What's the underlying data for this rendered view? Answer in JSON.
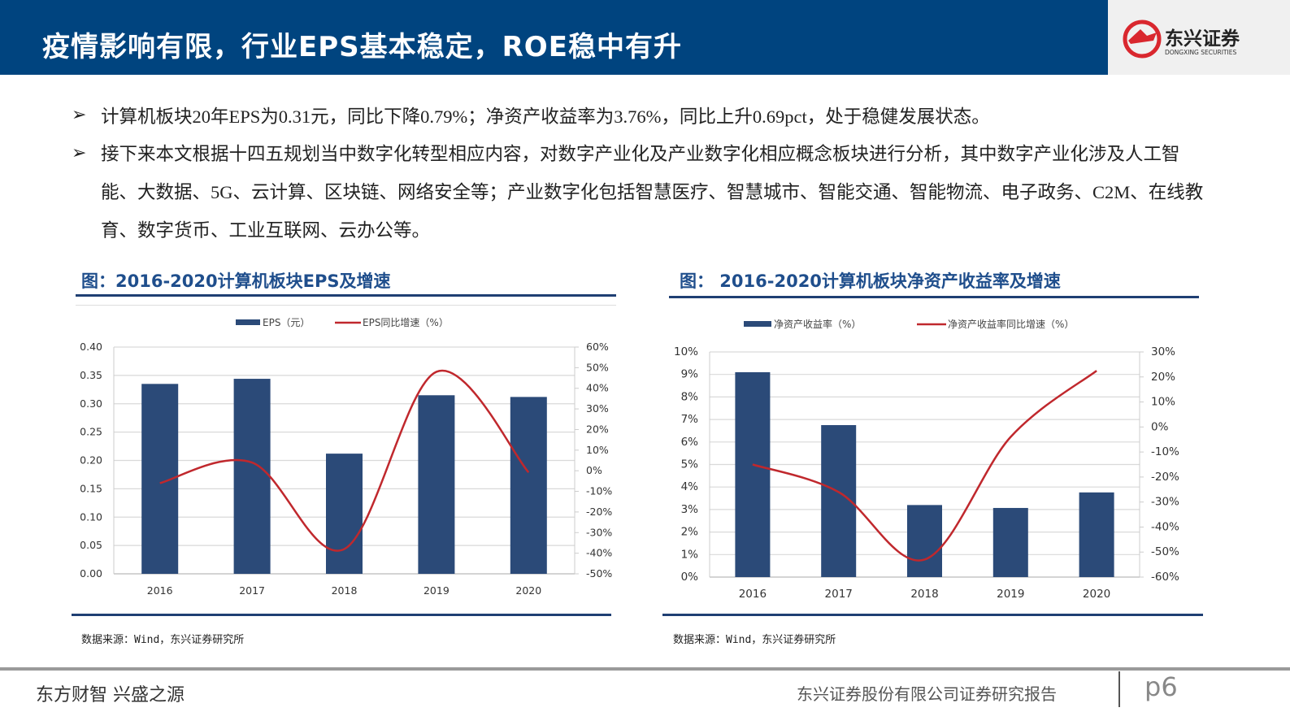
{
  "header": {
    "title": "疫情影响有限，行业EPS基本稳定，ROE稳中有升",
    "logo_text": "东兴证券",
    "logo_sub": "DONGXING SECURITIES"
  },
  "bullets": [
    {
      "icon": "arrow-bullet-icon",
      "text": "计算机板块20年EPS为0.31元，同比下降0.79%；净资产收益率为3.76%，同比上升0.69pct，处于稳健发展状态。"
    },
    {
      "icon": "arrow-bullet-icon",
      "text": "接下来本文根据十四五规划当中数字化转型相应内容，对数字产业化及产业数字化相应概念板块进行分析，其中数字产业化涉及人工智能、大数据、5G、云计算、区块链、网络安全等；产业数字化包括智慧医疗、智慧城市、智能交通、智能物流、电子政务、C2M、在线教育、数字货币、工业互联网、云办公等。"
    }
  ],
  "charts": [
    {
      "heading": "图：2016-2020计算机板块EPS及增速",
      "source": "数据来源：Wind，东兴证券研究所"
    },
    {
      "heading": "图：  2016-2020计算机板块净资产收益率及增速",
      "source": "数据来源：Wind，东兴证券研究所"
    }
  ],
  "chart_data": [
    {
      "type": "bar+line",
      "categories": [
        "2016",
        "2017",
        "2018",
        "2019",
        "2020"
      ],
      "series": [
        {
          "name": "EPS（元）",
          "type": "bar",
          "axis": "left",
          "color": "#2b4a78",
          "values": [
            0.335,
            0.344,
            0.212,
            0.315,
            0.312
          ]
        },
        {
          "name": "EPS同比增速（%）",
          "type": "line",
          "axis": "right",
          "color": "#c0282d",
          "values": [
            -6,
            4,
            -38,
            48,
            -0.79
          ]
        }
      ],
      "left_axis": {
        "min": 0,
        "max": 0.4,
        "step": 0.05,
        "ticks": [
          "0.00",
          "0.05",
          "0.10",
          "0.15",
          "0.20",
          "0.25",
          "0.30",
          "0.35",
          "0.40"
        ]
      },
      "right_axis": {
        "min": -50,
        "max": 60,
        "step": 10,
        "ticks": [
          "-50%",
          "-40%",
          "-30%",
          "-20%",
          "-10%",
          "0%",
          "10%",
          "20%",
          "30%",
          "40%",
          "50%",
          "60%"
        ]
      },
      "grid": true,
      "legend": "top"
    },
    {
      "type": "bar+line",
      "categories": [
        "2016",
        "2017",
        "2018",
        "2019",
        "2020"
      ],
      "series": [
        {
          "name": "净资产收益率（%）",
          "type": "bar",
          "axis": "left",
          "color": "#2b4a78",
          "values": [
            9.1,
            6.75,
            3.2,
            3.07,
            3.76
          ]
        },
        {
          "name": "净资产收益率同比增速（%）",
          "type": "line",
          "axis": "right",
          "color": "#c0282d",
          "values": [
            -15,
            -26,
            -53,
            -4,
            22.5
          ]
        }
      ],
      "left_axis": {
        "min": 0,
        "max": 10,
        "step": 1,
        "ticks": [
          "0%",
          "1%",
          "2%",
          "3%",
          "4%",
          "5%",
          "6%",
          "7%",
          "8%",
          "9%",
          "10%"
        ]
      },
      "right_axis": {
        "min": -60,
        "max": 30,
        "step": 10,
        "ticks": [
          "-60%",
          "-50%",
          "-40%",
          "-30%",
          "-20%",
          "-10%",
          "0%",
          "10%",
          "20%",
          "30%"
        ]
      },
      "grid": true,
      "legend": "top"
    }
  ],
  "footer": {
    "slogan": "东方财智 兴盛之源",
    "company": "东兴证券股份有限公司证券研究报告",
    "page": "p6"
  }
}
